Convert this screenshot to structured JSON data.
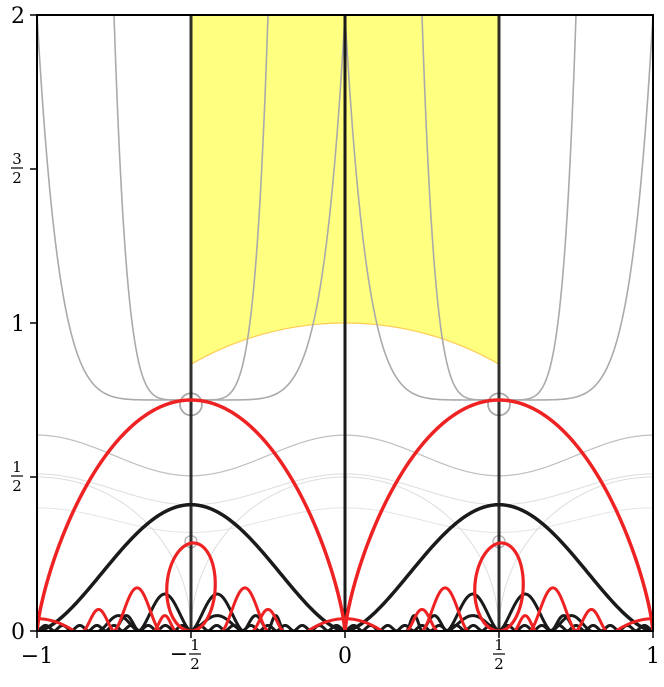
{
  "figure": {
    "x_range": [
      -1,
      1
    ],
    "y_range": [
      0,
      2
    ],
    "x_ticks": [
      {
        "value": -1,
        "label": "−1"
      },
      {
        "value": -0.5,
        "label": "−",
        "num": "1",
        "den": "2"
      },
      {
        "value": 0,
        "label": "0"
      },
      {
        "value": 0.5,
        "label": "",
        "num": "1",
        "den": "2"
      },
      {
        "value": 1,
        "label": "1"
      }
    ],
    "y_ticks": [
      {
        "value": 0,
        "label": "0"
      },
      {
        "value": 0.5,
        "label": "",
        "num": "1",
        "den": "2"
      },
      {
        "value": 1,
        "label": "1"
      },
      {
        "value": 1.5,
        "label": "",
        "num": "3",
        "den": "2"
      },
      {
        "value": 2,
        "label": "2"
      }
    ],
    "fundamental_domain": {
      "x_min": -0.5,
      "x_max": 0.5,
      "lower_boundary": "unit-circle arc |z| = 1",
      "fill_color": "#ffff80",
      "edge_color": "#ffcc55"
    },
    "colors": {
      "red_curves": "#ee2222",
      "black_curves": "#1a1a1a",
      "gray_contours": "#aaaaaa",
      "light_contours": "#dddddd"
    }
  }
}
